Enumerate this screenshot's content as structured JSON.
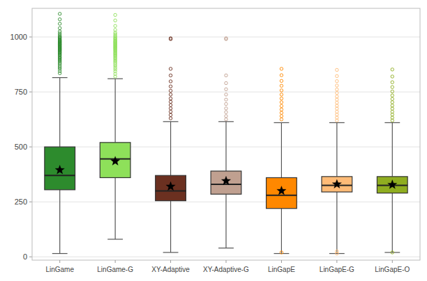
{
  "chart_data": {
    "type": "box",
    "categories": [
      "LinGame",
      "LinGame-G",
      "XY-Adaptive",
      "XY-Adaptive-G",
      "LinGapE",
      "LinGapE-G",
      "LinGapE-O"
    ],
    "colors": [
      "#2d8b2d",
      "#8ee05a",
      "#6b3020",
      "#c0a090",
      "#ff8800",
      "#ffbb77",
      "#8fad20"
    ],
    "boxes": [
      {
        "q1": 305,
        "median": 370,
        "q3": 500,
        "mean": 395,
        "whislo": 15,
        "whishi": 815,
        "fliers": [
          835,
          845,
          855,
          862,
          869,
          876,
          882,
          888,
          893,
          898,
          903,
          907,
          912,
          917,
          921,
          925,
          929,
          932,
          936,
          939,
          942,
          945,
          948,
          951,
          954,
          957,
          960,
          963,
          966,
          968,
          971,
          974,
          977,
          980,
          983,
          986,
          990,
          994,
          998,
          1002,
          1008,
          1016,
          1025,
          1040,
          1060,
          1080,
          1105
        ]
      },
      {
        "q1": 360,
        "median": 445,
        "q3": 520,
        "mean": 435,
        "whislo": 80,
        "whishi": 810,
        "fliers": [
          820,
          832,
          843,
          852,
          860,
          868,
          875,
          882,
          888,
          893,
          899,
          904,
          909,
          914,
          918,
          922,
          926,
          930,
          934,
          938,
          941,
          945,
          948,
          951,
          954,
          957,
          960,
          963,
          966,
          969,
          972,
          975,
          978,
          981,
          984,
          988,
          992,
          996,
          1001,
          1006,
          1013,
          1020,
          1032,
          1050,
          1075,
          1100
        ]
      },
      {
        "q1": 255,
        "median": 300,
        "q3": 370,
        "mean": 320,
        "whislo": 20,
        "whishi": 615,
        "fliers": [
          630,
          645,
          660,
          675,
          690,
          705,
          720,
          738,
          755,
          775,
          798,
          825,
          855,
          990,
          994
        ]
      },
      {
        "q1": 285,
        "median": 330,
        "q3": 390,
        "mean": 345,
        "whislo": 40,
        "whishi": 615,
        "fliers": [
          625,
          640,
          658,
          675,
          695,
          715,
          738,
          762,
          790,
          825,
          990,
          994
        ]
      },
      {
        "q1": 220,
        "median": 280,
        "q3": 360,
        "mean": 300,
        "whislo": 15,
        "whishi": 610,
        "fliers": [
          625,
          640,
          655,
          670,
          686,
          703,
          720,
          738,
          757,
          778,
          800,
          826,
          855,
          20
        ]
      },
      {
        "q1": 295,
        "median": 325,
        "q3": 365,
        "mean": 330,
        "whislo": 15,
        "whishi": 610,
        "fliers": [
          620,
          633,
          647,
          660,
          674,
          687,
          701,
          715,
          729,
          745,
          761,
          779,
          799,
          822,
          850,
          15,
          25
        ]
      },
      {
        "q1": 290,
        "median": 325,
        "q3": 365,
        "mean": 328,
        "whislo": 20,
        "whishi": 610,
        "fliers": [
          620,
          633,
          647,
          660,
          674,
          688,
          703,
          718,
          734,
          752,
          772,
          794,
          820,
          852,
          20
        ]
      }
    ],
    "ylim": [
      -15,
      1130
    ],
    "yticks": [
      0,
      250,
      500,
      750,
      1000
    ],
    "grid": true
  }
}
